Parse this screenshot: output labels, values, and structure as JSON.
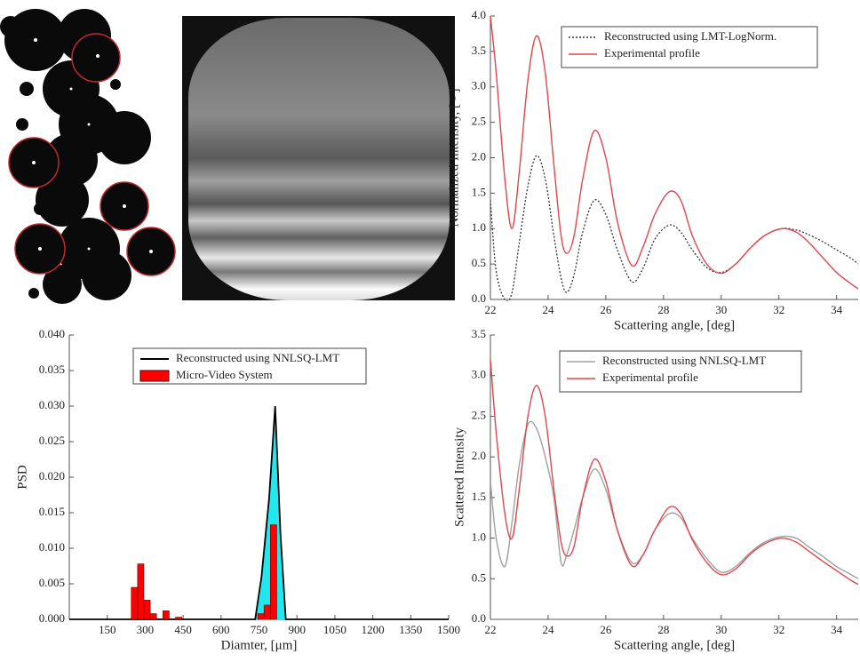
{
  "chart_data": [
    {
      "type": "line",
      "x_label": "Scattering angle, [deg]",
      "y_label": "Normalized Intensity, [ - ]",
      "x": [
        22,
        22.2,
        22.5,
        22.75,
        23.0,
        23.3,
        23.6,
        23.9,
        24.2,
        24.45,
        24.65,
        24.9,
        25.2,
        25.6,
        26.0,
        26.4,
        26.9,
        27.3,
        27.7,
        28.2,
        28.6,
        29.0,
        29.5,
        30.0,
        30.5,
        31.0,
        31.5,
        32.1,
        32.6,
        33.0,
        33.5,
        34.0,
        34.5,
        34.75
      ],
      "series": [
        {
          "name": "Reconstructed using LMT-LogNorm.",
          "color": "#333333",
          "dash": true,
          "values": [
            1.4,
            0.4,
            0.0,
            0.1,
            0.8,
            1.6,
            2.03,
            1.7,
            0.9,
            0.3,
            0.1,
            0.35,
            0.95,
            1.4,
            1.2,
            0.7,
            0.25,
            0.45,
            0.85,
            1.05,
            0.95,
            0.7,
            0.45,
            0.38,
            0.5,
            0.72,
            0.9,
            1.0,
            0.98,
            0.92,
            0.82,
            0.7,
            0.58,
            0.5
          ]
        },
        {
          "name": "Experimental profile",
          "color": "#e0474c",
          "dash": false,
          "values": [
            4.0,
            3.2,
            1.7,
            1.0,
            1.8,
            3.1,
            3.72,
            3.2,
            1.9,
            0.9,
            0.65,
            0.9,
            1.7,
            2.38,
            2.0,
            1.1,
            0.48,
            0.75,
            1.2,
            1.52,
            1.4,
            0.9,
            0.5,
            0.37,
            0.5,
            0.72,
            0.9,
            1.0,
            0.95,
            0.82,
            0.6,
            0.38,
            0.22,
            0.15
          ]
        }
      ],
      "xlim": [
        22,
        34.75
      ],
      "xticks": [
        22,
        24,
        26,
        28,
        30,
        32,
        34
      ],
      "ylim": [
        0,
        4
      ],
      "yticks": [
        {
          "value": 0,
          "label": "0.0"
        },
        0.5,
        {
          "value": 1,
          "label": "1.0"
        },
        1.5,
        {
          "value": 2,
          "label": "2.0"
        },
        2.5,
        {
          "value": 3,
          "label": "3.0"
        },
        3.5,
        {
          "value": 4,
          "label": "4.0"
        }
      ]
    },
    {
      "type": "histogram",
      "x_label": "Diamter, [μm]",
      "y_label": "PSD",
      "series": [
        {
          "name": "Reconstructed using NNLSQ-LMT",
          "type": "line",
          "color": "#000000",
          "fill": "#22e8ee",
          "x": [
            0,
            735,
            760,
            790,
            814,
            835,
            856,
            1500
          ],
          "values": [
            0,
            0,
            0.006,
            0.017,
            0.03,
            0.012,
            0,
            0
          ]
        },
        {
          "name": "Micro-Video System",
          "type": "histogram",
          "color": "#ff0000",
          "bins": [
            245,
            270,
            295,
            320,
            345,
            370,
            395,
            420,
            445,
            470,
            495,
            520,
            545,
            570,
            595,
            620,
            645,
            670,
            695,
            720,
            745,
            770,
            795,
            820
          ],
          "values": [
            0.0045,
            0.0078,
            0.0027,
            0.0008,
            0,
            0.0012,
            0,
            0.0003,
            0,
            0,
            0,
            0,
            0,
            0,
            0,
            0,
            0,
            0,
            0,
            0,
            0.0008,
            0.002,
            0.0133
          ]
        }
      ],
      "xlim": [
        0,
        1500
      ],
      "xticks": [
        150,
        300,
        450,
        600,
        750,
        900,
        1050,
        1200,
        1350,
        1500
      ],
      "ylim": [
        0,
        0.04
      ],
      "yticks": [
        {
          "value": 0,
          "label": "0.000"
        },
        {
          "value": 0.005,
          "label": "0.005"
        },
        {
          "value": 0.01,
          "label": "0.010"
        },
        {
          "value": 0.015,
          "label": "0.015"
        },
        {
          "value": 0.02,
          "label": "0.020"
        },
        {
          "value": 0.025,
          "label": "0.025"
        },
        {
          "value": 0.03,
          "label": "0.030"
        },
        {
          "value": 0.035,
          "label": "0.035"
        },
        {
          "value": 0.04,
          "label": "0.040"
        }
      ]
    },
    {
      "type": "line",
      "x_label": "Scattering angle, [deg]",
      "y_label": "Scattered Intensity",
      "x": [
        22,
        22.2,
        22.5,
        22.75,
        23.0,
        23.3,
        23.6,
        23.9,
        24.2,
        24.45,
        24.65,
        24.9,
        25.2,
        25.6,
        26.0,
        26.4,
        26.9,
        27.3,
        27.7,
        28.2,
        28.6,
        29.0,
        29.5,
        30.0,
        30.5,
        31.0,
        31.5,
        32.1,
        32.6,
        33.0,
        33.5,
        34.0,
        34.5,
        34.75
      ],
      "series": [
        {
          "name": "Reconstructed using NNLSQ-LMT",
          "color": "#a0a0a0",
          "dash": false,
          "values": [
            1.7,
            1.0,
            0.65,
            1.2,
            1.9,
            2.4,
            2.35,
            2.0,
            1.5,
            0.7,
            0.8,
            1.1,
            1.5,
            1.85,
            1.6,
            1.1,
            0.7,
            0.8,
            1.1,
            1.3,
            1.25,
            1.0,
            0.75,
            0.58,
            0.65,
            0.82,
            0.95,
            1.02,
            1.0,
            0.9,
            0.78,
            0.65,
            0.55,
            0.5
          ]
        },
        {
          "name": "Experimental profile",
          "color": "#e0474c",
          "dash": false,
          "values": [
            3.2,
            2.3,
            1.3,
            1.0,
            1.6,
            2.5,
            2.88,
            2.5,
            1.6,
            0.95,
            0.78,
            0.9,
            1.5,
            1.97,
            1.7,
            1.1,
            0.66,
            0.8,
            1.1,
            1.38,
            1.3,
            0.98,
            0.7,
            0.55,
            0.62,
            0.8,
            0.93,
            1.0,
            0.95,
            0.85,
            0.72,
            0.6,
            0.48,
            0.43
          ]
        }
      ],
      "xlim": [
        22,
        34.75
      ],
      "xticks": [
        22,
        24,
        26,
        28,
        30,
        32,
        34
      ],
      "ylim": [
        0,
        3.5
      ],
      "yticks": [
        {
          "value": 0,
          "label": "0.0"
        },
        0.5,
        {
          "value": 1,
          "label": "1.0"
        },
        1.5,
        {
          "value": 2,
          "label": "2.0"
        },
        2.5,
        {
          "value": 3,
          "label": "3.0"
        },
        3.5
      ]
    }
  ]
}
